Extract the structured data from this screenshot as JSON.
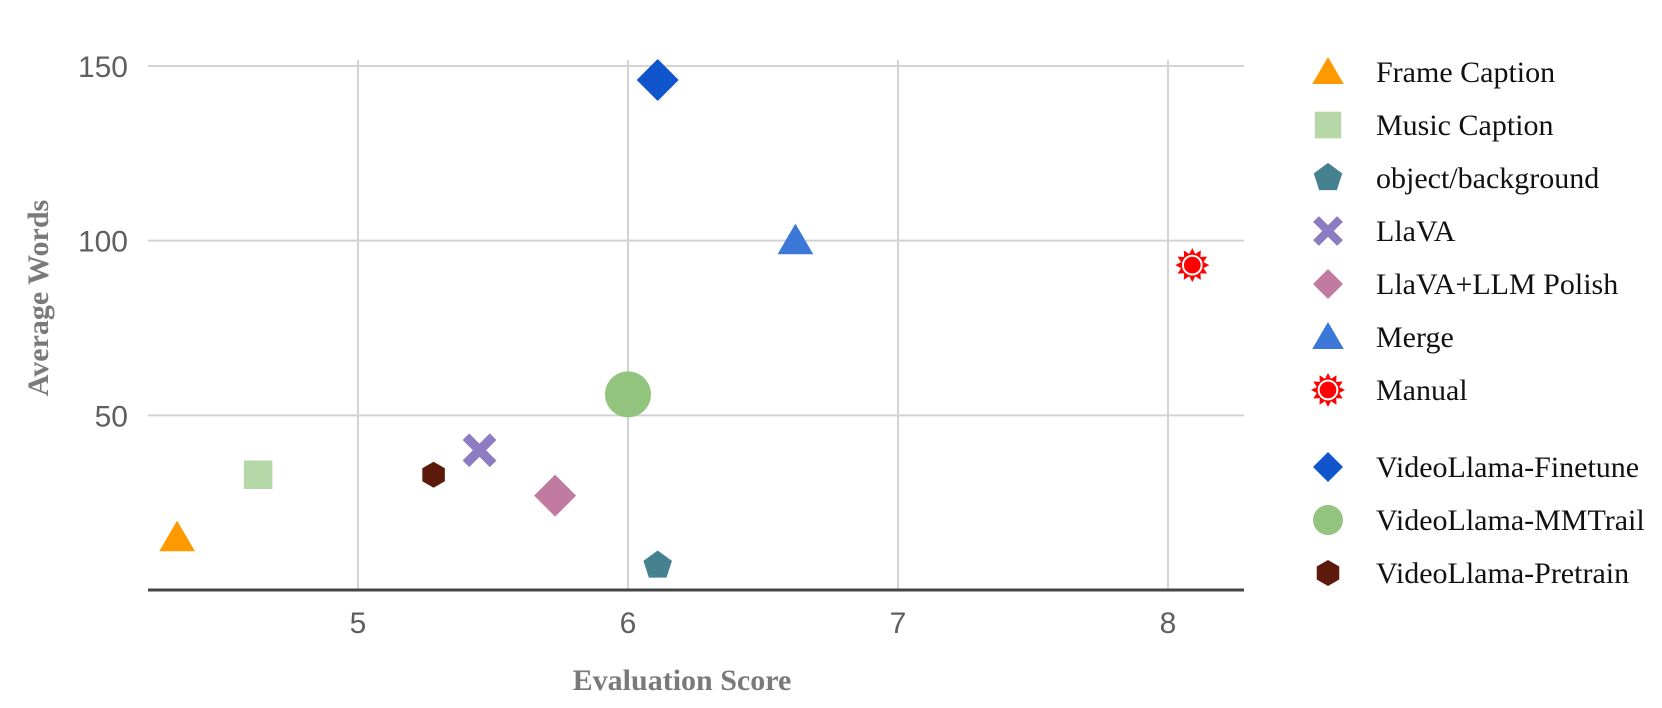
{
  "chart_data": {
    "type": "scatter",
    "title": "",
    "xlabel": "Evaluation Score",
    "ylabel": "Average Words",
    "xlim": [
      4.2,
      8.3
    ],
    "ylim": [
      0,
      150
    ],
    "xticks": [
      5,
      6,
      7,
      8
    ],
    "yticks": [
      50,
      100,
      150
    ],
    "grid": true,
    "legend_position": "right",
    "series": [
      {
        "name": "Frame Caption",
        "marker": "triangle",
        "color": "#FF9900",
        "x": 4.33,
        "y": 15
      },
      {
        "name": "Music Caption",
        "marker": "square",
        "color": "#B6D7A8",
        "x": 4.63,
        "y": 33
      },
      {
        "name": "object/background",
        "marker": "pentagon",
        "color": "#45818E",
        "x": 6.11,
        "y": 7
      },
      {
        "name": "LlaVA",
        "marker": "x",
        "color": "#8E7CC3",
        "x": 5.45,
        "y": 40
      },
      {
        "name": "LlaVA+LLM Polish",
        "marker": "diamond",
        "color": "#C27BA0",
        "x": 5.73,
        "y": 27
      },
      {
        "name": "Merge",
        "marker": "triangle",
        "color": "#3C78D8",
        "x": 6.62,
        "y": 100
      },
      {
        "name": "Manual",
        "marker": "sun",
        "color": "#FF0000",
        "x": 8.09,
        "y": 93
      },
      {
        "name": "VideoLlama-Finetune",
        "marker": "diamond",
        "color": "#1155CC",
        "x": 6.11,
        "y": 146
      },
      {
        "name": "VideoLlama-MMTrail",
        "marker": "circle",
        "color": "#93C47D",
        "x": 6.0,
        "y": 56
      },
      {
        "name": "VideoLlama-Pretrain",
        "marker": "hexagon",
        "color": "#5B1A0A",
        "x": 5.28,
        "y": 33
      }
    ]
  }
}
